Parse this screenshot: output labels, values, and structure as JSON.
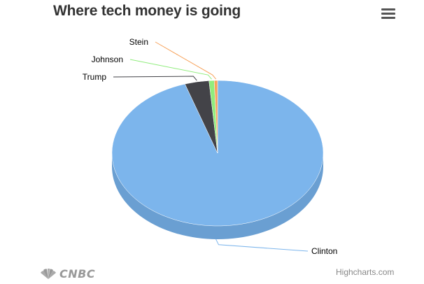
{
  "header": {
    "title": "Where tech money is going"
  },
  "chart_data": {
    "type": "pie",
    "title": "Where tech money is going",
    "is_3d": true,
    "slices": [
      {
        "name": "Clinton",
        "value": 95.0,
        "color": "#7cb5ec",
        "side_color": "#6a9fd2"
      },
      {
        "name": "Trump",
        "value": 3.7,
        "color": "#434348",
        "side_color": "#2e2e33"
      },
      {
        "name": "Johnson",
        "value": 0.8,
        "color": "#90ed7d",
        "side_color": "#74cc63"
      },
      {
        "name": "Stein",
        "value": 0.5,
        "color": "#f7a35c",
        "side_color": "#d98a44"
      }
    ]
  },
  "footer": {
    "credits": "Highcharts.com",
    "brand": "CNBC"
  },
  "icons": {
    "menu": "hamburger-menu-icon",
    "brand_logo": "peacock-icon"
  }
}
